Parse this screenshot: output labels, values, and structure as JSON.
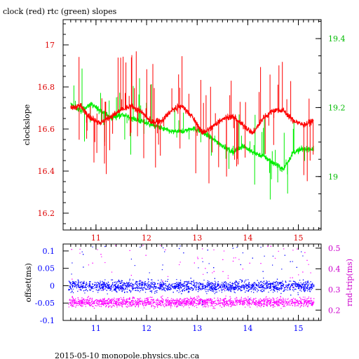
{
  "title": "clock (red) rtc (green) slopes",
  "footer": "2015-05-10  monopole.physics.ubc.ca",
  "colors": {
    "red": "#ff0000",
    "green": "#00ee00",
    "blue": "#0000ff",
    "magenta": "#ff00ff",
    "axis_red": "#dd0000",
    "axis_green": "#00bb00",
    "axis_blue": "#0000ff",
    "axis_magenta": "#cc00cc"
  },
  "chart_data": [
    {
      "type": "line",
      "ylabel": "clockslope",
      "xlim": [
        10.35,
        15.45
      ],
      "ylim": [
        16.12,
        17.12
      ],
      "y2lim": [
        18.845,
        19.455
      ],
      "xticks": [
        "11",
        "12",
        "13",
        "14",
        "15"
      ],
      "yticks": [
        "16.2",
        "16.4",
        "16.6",
        "16.8",
        "17"
      ],
      "y2ticks": [
        "19",
        "19.2",
        "19.4"
      ],
      "series": [
        {
          "color": "red",
          "axis": "left",
          "x": [
            10.5,
            10.7,
            10.9,
            11.1,
            11.3,
            11.5,
            11.7,
            11.9,
            12.1,
            12.3,
            12.5,
            12.7,
            12.9,
            13.1,
            13.3,
            13.5,
            13.7,
            13.9,
            14.1,
            14.3,
            14.5,
            14.7,
            14.9,
            15.1,
            15.3
          ],
          "values": [
            16.7,
            16.71,
            16.65,
            16.63,
            16.66,
            16.69,
            16.71,
            16.68,
            16.63,
            16.64,
            16.69,
            16.71,
            16.66,
            16.58,
            16.61,
            16.65,
            16.66,
            16.62,
            16.58,
            16.65,
            16.69,
            16.69,
            16.64,
            16.62,
            16.64
          ]
        },
        {
          "color": "green",
          "axis": "right",
          "x": [
            10.5,
            10.7,
            10.9,
            11.1,
            11.3,
            11.5,
            11.7,
            11.9,
            12.1,
            12.3,
            12.5,
            12.7,
            12.9,
            13.1,
            13.3,
            13.5,
            13.7,
            13.9,
            14.1,
            14.3,
            14.5,
            14.7,
            14.9,
            15.1,
            15.3
          ],
          "values": [
            19.21,
            19.19,
            19.21,
            19.19,
            19.17,
            19.18,
            19.17,
            19.16,
            19.15,
            19.14,
            19.13,
            19.13,
            19.14,
            19.13,
            19.11,
            19.09,
            19.07,
            19.09,
            19.07,
            19.06,
            19.04,
            19.02,
            19.07,
            19.08,
            19.08
          ]
        }
      ]
    },
    {
      "type": "scatter",
      "ylabel": "offset(ms)",
      "y2label": "rnd-trip(ms)",
      "xlim": [
        10.35,
        15.45
      ],
      "ylim": [
        -0.1,
        0.12
      ],
      "y2lim": [
        0.15,
        0.52
      ],
      "xticks": [
        "11",
        "12",
        "13",
        "14",
        "15"
      ],
      "yticks": [
        "-0.1",
        "-0.05",
        "0",
        "0.05",
        "0.1"
      ],
      "y2ticks": [
        "0.2",
        "0.3",
        "0.4",
        "0.5"
      ],
      "series": [
        {
          "color": "blue",
          "axis": "left",
          "center": 0.0,
          "spread": 0.016,
          "x_range": [
            10.45,
            15.3
          ]
        },
        {
          "color": "magenta",
          "axis": "right",
          "center": 0.24,
          "spread": 0.022,
          "x_range": [
            10.45,
            15.3
          ]
        }
      ]
    }
  ]
}
